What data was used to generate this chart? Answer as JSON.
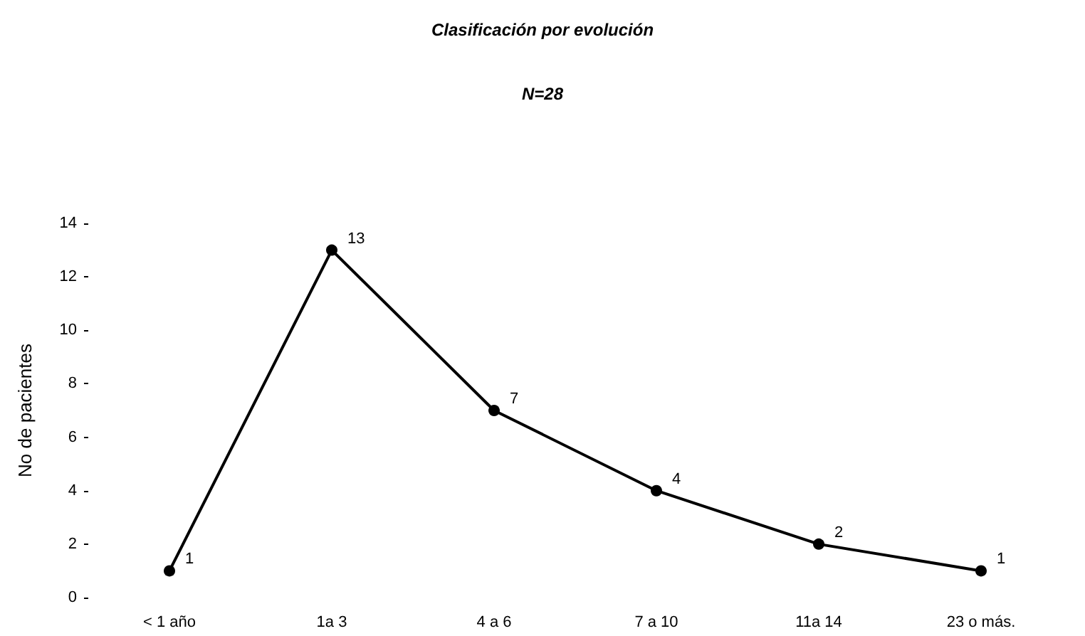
{
  "chart_data": {
    "type": "line",
    "title": "Clasificación por evolución",
    "subtitle": "N=28",
    "ylabel": "No de pacientes",
    "categories": [
      "< 1 año",
      "1a 3",
      "4 a 6",
      "7 a 10",
      "11a 14",
      "23 o más."
    ],
    "series": [
      {
        "color": "#000000",
        "values": [
          1,
          13,
          7,
          4,
          2,
          1
        ]
      }
    ],
    "ylim": [
      0,
      14
    ],
    "yticks": [
      0,
      2,
      4,
      6,
      8,
      10,
      12,
      14
    ],
    "grid": false,
    "marker": "circle",
    "line_style": "solid",
    "data_labels": true
  }
}
